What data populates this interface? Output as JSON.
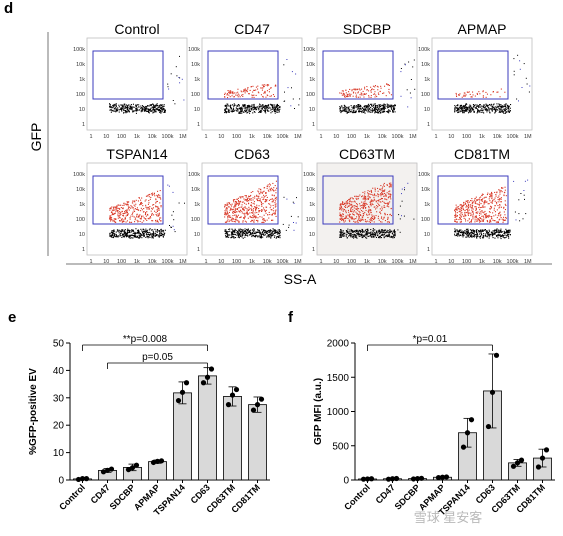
{
  "panel_d": {
    "letter": "d",
    "y_axis_label": "GFP",
    "x_axis_label": "SS-A",
    "y_ticks": [
      "100k",
      "10k",
      "1k",
      "100",
      "10",
      "1"
    ],
    "x_ticks": [
      "1",
      "10",
      "100",
      "1k",
      "10k",
      "100k",
      "1M"
    ],
    "plots": [
      {
        "title": "Control",
        "level": 0
      },
      {
        "title": "CD47",
        "level": 1
      },
      {
        "title": "SDCBP",
        "level": 1
      },
      {
        "title": "APMAP",
        "level": 0.4
      },
      {
        "title": "TSPAN14",
        "level": 3
      },
      {
        "title": "CD63",
        "level": 4
      },
      {
        "title": "CD63TM",
        "level": 4.2
      },
      {
        "title": "CD81TM",
        "level": 3.6
      }
    ]
  },
  "watermark": "雪球  星安客",
  "colors": {
    "bar_fill": "#d9d9d9",
    "gate": "#3b3bbd",
    "positive": "#d93b2a",
    "negative": "#000000"
  },
  "chart_data": [
    {
      "type": "bar",
      "panel": "e",
      "title": "",
      "ylabel": "%GFP-positive EV",
      "xlabel": "",
      "ylim": [
        0,
        50
      ],
      "yticks": [
        0,
        10,
        20,
        30,
        40,
        50
      ],
      "categories": [
        "Control",
        "CD47",
        "SDCBP",
        "APMAP",
        "TSPAN14",
        "CD63",
        "CD63TM",
        "CD81TM"
      ],
      "values": [
        0.4,
        3.5,
        4.6,
        6.7,
        31.8,
        38,
        30.5,
        27.5
      ],
      "errors": [
        0.3,
        0.7,
        1.2,
        0.6,
        4,
        3,
        3.5,
        2.8
      ],
      "points": [
        [
          0.2,
          0.5,
          0.5
        ],
        [
          3,
          3.5,
          4
        ],
        [
          3.8,
          4.5,
          5.4
        ],
        [
          6.4,
          6.8,
          7
        ],
        [
          29,
          32,
          35.5
        ],
        [
          35.5,
          37.5,
          40.5
        ],
        [
          27.5,
          31,
          33
        ],
        [
          25.5,
          27.5,
          29.5
        ]
      ],
      "annotations": [
        {
          "text": "**p=0.008",
          "from": "Control",
          "to": "CD63"
        },
        {
          "text": "p=0.05",
          "from": "CD47",
          "to": "CD63"
        }
      ],
      "grid": false,
      "legend": "none"
    },
    {
      "type": "bar",
      "panel": "f",
      "title": "",
      "ylabel": "GFP MFI (a.u.)",
      "xlabel": "",
      "ylim": [
        0,
        2000
      ],
      "yticks": [
        0,
        500,
        1000,
        1500,
        2000
      ],
      "categories": [
        "Control",
        "CD47",
        "SDCBP",
        "APMAP",
        "TSPAN14",
        "CD63",
        "CD63TM",
        "CD81TM"
      ],
      "values": [
        15,
        18,
        20,
        40,
        690,
        1300,
        250,
        320
      ],
      "errors": [
        5,
        6,
        8,
        10,
        210,
        540,
        50,
        130
      ],
      "points": [
        [
          12,
          15,
          18
        ],
        [
          12,
          18,
          22
        ],
        [
          15,
          20,
          25
        ],
        [
          35,
          40,
          45
        ],
        [
          480,
          690,
          880
        ],
        [
          780,
          1280,
          1820
        ],
        [
          200,
          250,
          290
        ],
        [
          190,
          320,
          440
        ]
      ],
      "annotations": [
        {
          "text": "*p=0.01",
          "from": "Control",
          "to": "CD63"
        }
      ],
      "grid": false,
      "legend": "none"
    }
  ]
}
